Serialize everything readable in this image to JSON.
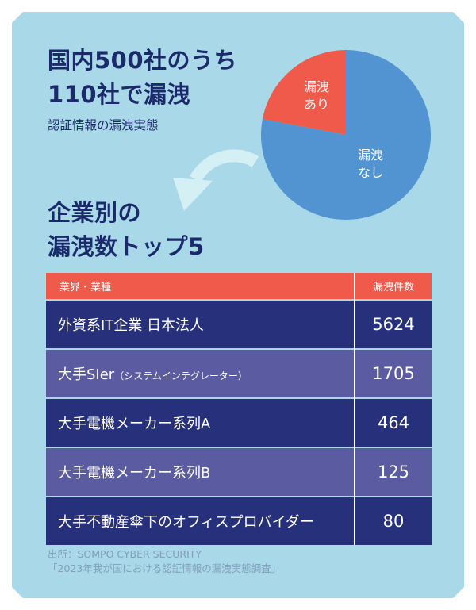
{
  "headline": {
    "line1": "国内500社のうち",
    "line2": "110社で漏洩",
    "subtitle": "認証情報の漏洩実態"
  },
  "ranking_title": {
    "line1": "企業別の",
    "line2": "漏洩数トップ5"
  },
  "pie": {
    "leaked_label_1": "漏洩",
    "leaked_label_2": "あり",
    "not_leaked_label_1": "漏洩",
    "not_leaked_label_2": "なし"
  },
  "table": {
    "header_industry": "業界・業種",
    "header_count": "漏洩件数",
    "rows": [
      {
        "name": "外資系IT企業 日本法人",
        "suffix": "",
        "count": "5624"
      },
      {
        "name": "大手SIer",
        "suffix": "（システムインテグレーター）",
        "count": "1705"
      },
      {
        "name": "大手電機メーカー系列A",
        "suffix": "",
        "count": "464"
      },
      {
        "name": "大手電機メーカー系列B",
        "suffix": "",
        "count": "125"
      },
      {
        "name": "大手不動産傘下のオフィスプロバイダー",
        "suffix": "",
        "count": "80"
      }
    ]
  },
  "source": {
    "line1": "出所：SOMPO CYBER SECURITY",
    "line2": "「2023年我が国における認証情報の漏洩実態調査」"
  },
  "colors": {
    "background": "#a9d8e8",
    "navy": "#1b2a6b",
    "red": "#ef5a4b",
    "blue": "#5294d2",
    "row_dark": "#27307a",
    "row_light": "#5a5ba0"
  },
  "chart_data": [
    {
      "type": "pie",
      "categories": [
        "漏洩あり",
        "漏洩なし"
      ],
      "values": [
        110,
        390
      ],
      "colors": [
        "#ef5a4b",
        "#5294d2"
      ]
    },
    {
      "type": "table",
      "columns": [
        "業界・業種",
        "漏洩件数"
      ],
      "rows": [
        [
          "外資系IT企業 日本法人",
          5624
        ],
        [
          "大手SIer（システムインテグレーター）",
          1705
        ],
        [
          "大手電機メーカー系列A",
          464
        ],
        [
          "大手電機メーカー系列B",
          125
        ],
        [
          "大手不動産傘下のオフィスプロバイダー",
          80
        ]
      ]
    }
  ]
}
